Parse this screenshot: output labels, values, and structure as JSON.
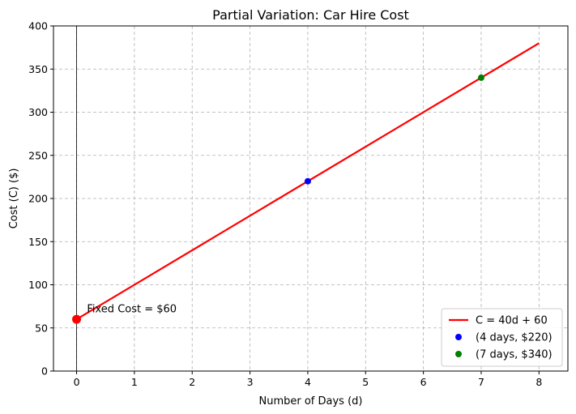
{
  "chart_data": {
    "type": "line",
    "title": "Partial Variation: Car Hire Cost",
    "xlabel": "Number of Days (d)",
    "ylabel": "Cost (C) ($)",
    "xlim": [
      -0.4,
      8.5
    ],
    "ylim": [
      0,
      400
    ],
    "xticks": [
      0,
      1,
      2,
      3,
      4,
      5,
      6,
      7,
      8
    ],
    "yticks": [
      0,
      50,
      100,
      150,
      200,
      250,
      300,
      350,
      400
    ],
    "grid": true,
    "grid_style": "dashed",
    "legend_position": "lower-right",
    "series": [
      {
        "name": "C = 40d + 60",
        "kind": "line",
        "color": "#ff0000",
        "x": [
          0,
          8
        ],
        "y": [
          60,
          380
        ]
      },
      {
        "name": "(4 days, $220)",
        "kind": "point",
        "color": "#0000ff",
        "x": [
          4
        ],
        "y": [
          220
        ]
      },
      {
        "name": "(7 days, $340)",
        "kind": "point",
        "color": "#008000",
        "x": [
          7
        ],
        "y": [
          340
        ]
      }
    ],
    "highlight_point": {
      "x": 0,
      "y": 60,
      "color": "#ff0000"
    },
    "annotations": [
      {
        "text": "Fixed Cost = $60",
        "x": 0.18,
        "y": 68
      }
    ]
  }
}
